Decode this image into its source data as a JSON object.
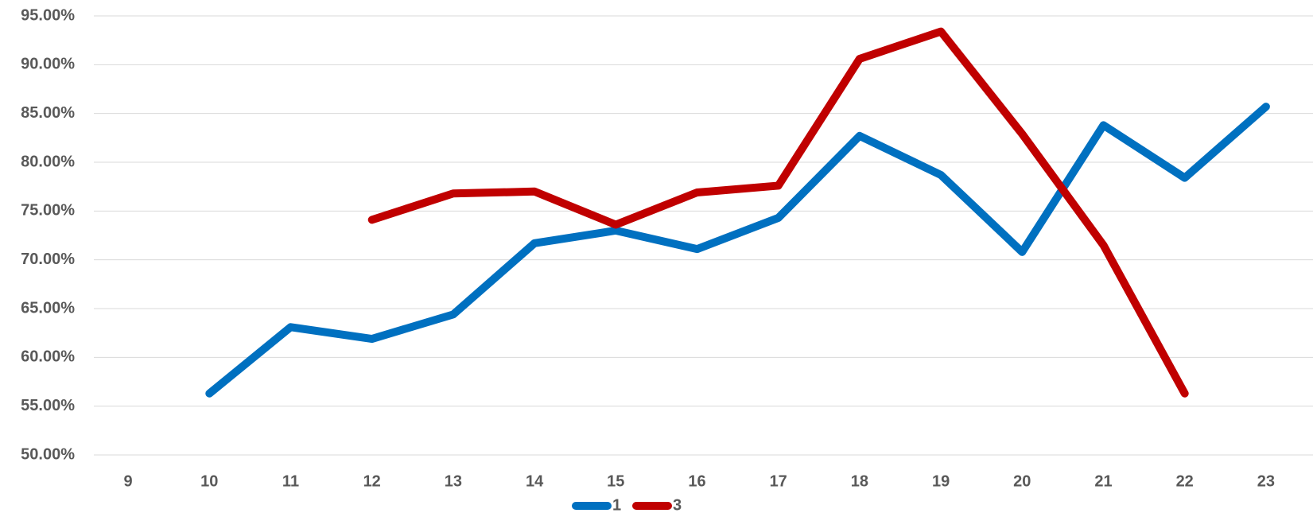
{
  "chart_data": {
    "type": "line",
    "categories": [
      "9",
      "10",
      "11",
      "12",
      "13",
      "14",
      "15",
      "16",
      "17",
      "18",
      "19",
      "20",
      "21",
      "22",
      "23"
    ],
    "series": [
      {
        "name": "1",
        "color": "#0070c0",
        "values": [
          null,
          56.3,
          63.1,
          61.9,
          64.4,
          71.7,
          73.0,
          71.1,
          74.3,
          82.7,
          78.7,
          70.8,
          83.8,
          78.4,
          85.7
        ]
      },
      {
        "name": "3",
        "color": "#c00000",
        "values": [
          null,
          null,
          null,
          74.1,
          76.8,
          77.0,
          73.6,
          76.9,
          77.6,
          90.6,
          93.4,
          82.9,
          71.5,
          56.3,
          null
        ]
      }
    ],
    "ylim": [
      50,
      95
    ],
    "yticks": [
      {
        "value": 50,
        "label": "50.00%"
      },
      {
        "value": 55,
        "label": "55.00%"
      },
      {
        "value": 60,
        "label": "60.00%"
      },
      {
        "value": 65,
        "label": "65.00%"
      },
      {
        "value": 70,
        "label": "70.00%"
      },
      {
        "value": 75,
        "label": "75.00%"
      },
      {
        "value": 80,
        "label": "80.00%"
      },
      {
        "value": 85,
        "label": "85.00%"
      },
      {
        "value": 90,
        "label": "90.00%"
      },
      {
        "value": 95,
        "label": "95.00%"
      }
    ],
    "grid": true,
    "legend": "bottom"
  }
}
